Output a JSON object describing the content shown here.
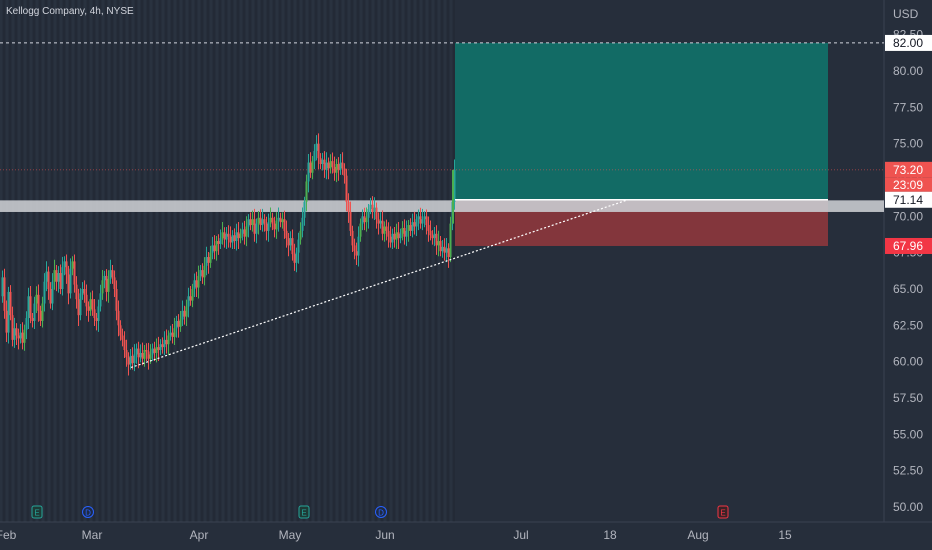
{
  "symbol": {
    "title": "Kellogg Company, 4h, NYSE",
    "currency": "USD"
  },
  "colors": {
    "background": "#262e3b",
    "up": "#26a69a",
    "upBright": "#4caf50",
    "down": "#ef5350",
    "profit": "#0e7a71",
    "loss": "#a33a3e"
  },
  "chart_data": {
    "type": "candlestick",
    "ylim": [
      49,
      83.5
    ],
    "y_ticks": [
      "50.00",
      "52.50",
      "55.00",
      "57.50",
      "60.00",
      "62.50",
      "65.00",
      "67.50",
      "70.00",
      "72.50",
      "75.00",
      "77.50",
      "80.00",
      "82.50"
    ],
    "x_ticks": [
      "Feb",
      "Mar",
      "Apr",
      "May",
      "Jun",
      "Jul",
      "18",
      "Aug",
      "15"
    ],
    "price_tags": {
      "target": "82.00",
      "current": "73.20",
      "countdown": "23:09",
      "entry": "71.14",
      "stop": "67.96"
    },
    "position": {
      "entry": 71.14,
      "target": 82.0,
      "stop": 67.96
    },
    "horizontal_zone": [
      70.3,
      71.1
    ],
    "trendline": {
      "from_price": 59.6,
      "to_price": 71.14
    },
    "event_markers": [
      {
        "letter": "E",
        "x_label": "Feb"
      },
      {
        "letter": "D",
        "x_label": "Mar"
      },
      {
        "letter": "E",
        "x_label": "May"
      },
      {
        "letter": "D",
        "x_label": "Jun"
      },
      {
        "letter": "E",
        "x_label": "Aug"
      }
    ],
    "price_path": [
      [
        0,
        64.5
      ],
      [
        2,
        65.8
      ],
      [
        4,
        63.5
      ],
      [
        6,
        62.0
      ],
      [
        8,
        64.8
      ],
      [
        10,
        63.2
      ],
      [
        12,
        61.5
      ],
      [
        14,
        62.3
      ],
      [
        16,
        61.8
      ],
      [
        18,
        61.6
      ],
      [
        20,
        62.0
      ],
      [
        22,
        61.3
      ],
      [
        24,
        62.2
      ],
      [
        26,
        63.0
      ],
      [
        28,
        64.5
      ],
      [
        30,
        63.0
      ],
      [
        32,
        62.8
      ],
      [
        34,
        64.0
      ],
      [
        36,
        64.6
      ],
      [
        38,
        63.5
      ],
      [
        40,
        62.8
      ],
      [
        42,
        64.0
      ],
      [
        44,
        65.5
      ],
      [
        46,
        66.2
      ],
      [
        48,
        65.0
      ],
      [
        50,
        64.0
      ],
      [
        52,
        65.5
      ],
      [
        54,
        66.3
      ],
      [
        56,
        65.5
      ],
      [
        58,
        66.1
      ],
      [
        60,
        65.0
      ],
      [
        62,
        66.5
      ],
      [
        64,
        66.9
      ],
      [
        66,
        66.0
      ],
      [
        68,
        64.7
      ],
      [
        70,
        66.4
      ],
      [
        72,
        66.9
      ],
      [
        74,
        65.3
      ],
      [
        76,
        64.3
      ],
      [
        78,
        63.2
      ],
      [
        80,
        64.7
      ],
      [
        82,
        65.0
      ],
      [
        84,
        64.6
      ],
      [
        86,
        63.8
      ],
      [
        88,
        63.5
      ],
      [
        90,
        64.3
      ],
      [
        92,
        63.6
      ],
      [
        94,
        63.0
      ],
      [
        96,
        62.8
      ],
      [
        98,
        63.8
      ],
      [
        100,
        64.7
      ],
      [
        102,
        65.6
      ],
      [
        104,
        65.9
      ],
      [
        106,
        64.8
      ],
      [
        108,
        65.7
      ],
      [
        110,
        66.3
      ],
      [
        112,
        65.8
      ],
      [
        114,
        65.0
      ],
      [
        116,
        63.5
      ],
      [
        118,
        62.5
      ],
      [
        120,
        61.8
      ],
      [
        122,
        61.5
      ],
      [
        124,
        60.8
      ],
      [
        126,
        60.3
      ],
      [
        128,
        59.8
      ],
      [
        130,
        60.4
      ],
      [
        132,
        59.9
      ],
      [
        134,
        60.5
      ],
      [
        136,
        60.9
      ],
      [
        138,
        60.3
      ],
      [
        140,
        60.6
      ],
      [
        142,
        60.2
      ],
      [
        144,
        60.8
      ],
      [
        146,
        60.7
      ],
      [
        148,
        60.2
      ],
      [
        150,
        60.5
      ],
      [
        152,
        60.9
      ],
      [
        154,
        60.6
      ],
      [
        156,
        61.0
      ],
      [
        158,
        60.8
      ],
      [
        160,
        61.2
      ],
      [
        162,
        61.0
      ],
      [
        164,
        61.5
      ],
      [
        166,
        61.2
      ],
      [
        168,
        61.8
      ],
      [
        170,
        62.0
      ],
      [
        172,
        61.7
      ],
      [
        174,
        62.3
      ],
      [
        176,
        62.8
      ],
      [
        178,
        62.4
      ],
      [
        180,
        62.9
      ],
      [
        182,
        63.5
      ],
      [
        184,
        63.1
      ],
      [
        186,
        63.8
      ],
      [
        188,
        64.5
      ],
      [
        190,
        64.2
      ],
      [
        192,
        65.0
      ],
      [
        194,
        65.6
      ],
      [
        196,
        65.1
      ],
      [
        198,
        65.9
      ],
      [
        200,
        66.3
      ],
      [
        202,
        65.8
      ],
      [
        204,
        66.6
      ],
      [
        206,
        67.2
      ],
      [
        208,
        66.8
      ],
      [
        210,
        67.5
      ],
      [
        212,
        68.0
      ],
      [
        214,
        67.6
      ],
      [
        216,
        68.3
      ],
      [
        218,
        68.1
      ],
      [
        220,
        68.5
      ],
      [
        222,
        68.9
      ],
      [
        224,
        68.4
      ],
      [
        226,
        68.8
      ],
      [
        228,
        68.6
      ],
      [
        230,
        68.2
      ],
      [
        232,
        68.7
      ],
      [
        234,
        68.3
      ],
      [
        236,
        68.9
      ],
      [
        238,
        68.5
      ],
      [
        240,
        68.8
      ],
      [
        242,
        69.1
      ],
      [
        244,
        68.6
      ],
      [
        246,
        69.3
      ],
      [
        248,
        69.8
      ],
      [
        250,
        69.4
      ],
      [
        252,
        69.8
      ],
      [
        254,
        68.8
      ],
      [
        256,
        69.5
      ],
      [
        258,
        69.9
      ],
      [
        260,
        69.4
      ],
      [
        262,
        69.8
      ],
      [
        264,
        69.5
      ],
      [
        266,
        69.0
      ],
      [
        268,
        69.6
      ],
      [
        270,
        69.9
      ],
      [
        272,
        69.5
      ],
      [
        274,
        69.1
      ],
      [
        276,
        69.7
      ],
      [
        278,
        69.9
      ],
      [
        280,
        69.6
      ],
      [
        282,
        69.8
      ],
      [
        284,
        69.0
      ],
      [
        286,
        68.5
      ],
      [
        288,
        68.0
      ],
      [
        290,
        68.5
      ],
      [
        292,
        67.4
      ],
      [
        294,
        66.8
      ],
      [
        296,
        67.5
      ],
      [
        298,
        68.4
      ],
      [
        300,
        69.0
      ],
      [
        302,
        69.9
      ],
      [
        304,
        71.0
      ],
      [
        306,
        72.4
      ],
      [
        308,
        73.7
      ],
      [
        310,
        73.0
      ],
      [
        312,
        73.8
      ],
      [
        314,
        74.5
      ],
      [
        316,
        75.0
      ],
      [
        318,
        74.0
      ],
      [
        320,
        73.6
      ],
      [
        322,
        73.9
      ],
      [
        324,
        73.2
      ],
      [
        326,
        73.7
      ],
      [
        328,
        73.3
      ],
      [
        330,
        73.8
      ],
      [
        332,
        73.4
      ],
      [
        334,
        73.0
      ],
      [
        336,
        73.6
      ],
      [
        338,
        73.2
      ],
      [
        340,
        73.7
      ],
      [
        342,
        73.3
      ],
      [
        344,
        72.8
      ],
      [
        346,
        71.0
      ],
      [
        348,
        70.3
      ],
      [
        350,
        69.0
      ],
      [
        352,
        68.0
      ],
      [
        354,
        67.6
      ],
      [
        356,
        67.3
      ],
      [
        358,
        68.6
      ],
      [
        360,
        69.5
      ],
      [
        362,
        70.0
      ],
      [
        364,
        69.6
      ],
      [
        366,
        69.9
      ],
      [
        368,
        70.5
      ],
      [
        370,
        70.8
      ],
      [
        372,
        70.3
      ],
      [
        374,
        70.6
      ],
      [
        376,
        69.8
      ],
      [
        378,
        69.5
      ],
      [
        380,
        69.7
      ],
      [
        382,
        68.8
      ],
      [
        384,
        69.3
      ],
      [
        386,
        69.0
      ],
      [
        388,
        68.6
      ],
      [
        390,
        68.2
      ],
      [
        392,
        68.8
      ],
      [
        394,
        68.4
      ],
      [
        396,
        68.9
      ],
      [
        398,
        68.5
      ],
      [
        400,
        68.8
      ],
      [
        402,
        69.2
      ],
      [
        404,
        68.6
      ],
      [
        406,
        69.0
      ],
      [
        408,
        69.4
      ],
      [
        410,
        69.0
      ],
      [
        412,
        69.6
      ],
      [
        414,
        69.3
      ],
      [
        416,
        69.8
      ],
      [
        418,
        70.0
      ],
      [
        420,
        69.5
      ],
      [
        422,
        69.8
      ],
      [
        424,
        70.0
      ],
      [
        426,
        69.4
      ],
      [
        428,
        69.0
      ],
      [
        430,
        68.7
      ],
      [
        432,
        68.5
      ],
      [
        434,
        68.8
      ],
      [
        436,
        68.0
      ],
      [
        438,
        68.3
      ],
      [
        440,
        67.6
      ],
      [
        442,
        67.9
      ],
      [
        444,
        67.5
      ],
      [
        446,
        67.8
      ],
      [
        448,
        67.2
      ],
      [
        450,
        69.5
      ],
      [
        452,
        71.0
      ],
      [
        454,
        73.2
      ]
    ]
  }
}
